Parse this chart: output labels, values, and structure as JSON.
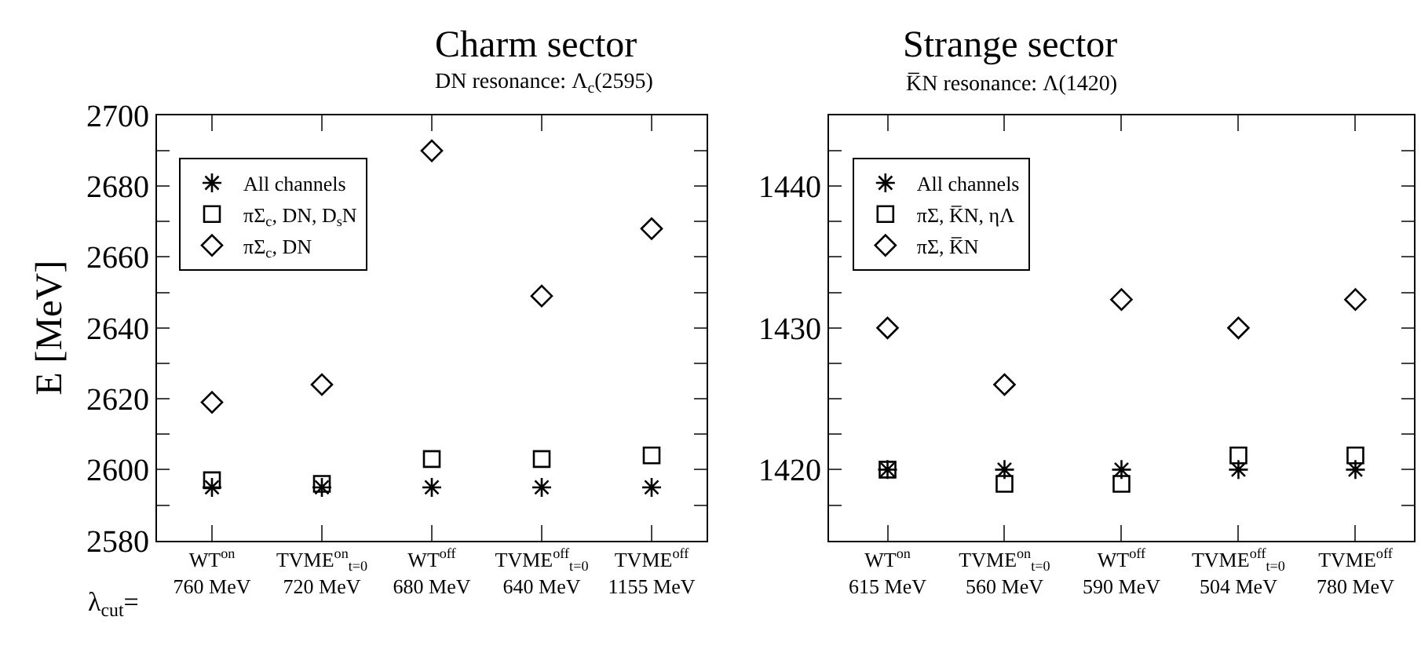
{
  "chart_data": [
    {
      "type": "scatter",
      "title": "Charm sector",
      "subtitle": "DN resonance: Λ$_{c}$(2595)",
      "ylabel": "E [MeV]",
      "categories": [
        "WT$^{on}$\n760 MeV",
        "TVME$^{on}$$_{t=0}$\n720 MeV",
        "WT$^{off}$\n680 MeV",
        "TVME$^{off}$$_{t=0}$\n640 MeV",
        "TVME$^{off}$\n1155 MeV"
      ],
      "series": [
        {
          "name": "All channels",
          "color": "#000000",
          "marker": "cross",
          "values": [
            2595,
            2595,
            2595,
            2595,
            2595
          ]
        },
        {
          "name": "πΣ$_{c}$, DN, D$_{s}$N",
          "color": "#000000",
          "marker": "square",
          "values": [
            2597,
            2596,
            2603,
            2603,
            2604
          ]
        },
        {
          "name": "πΣ$_{c}$, DN",
          "color": "#000000",
          "marker": "diamond",
          "values": [
            2619,
            2624,
            2690,
            2649,
            2668
          ]
        }
      ],
      "ylim": [
        2580,
        2700
      ],
      "yticks": [
        2580,
        {
          "value": 2590,
          "label": null
        },
        2600,
        {
          "value": 2610,
          "label": null
        },
        2620,
        {
          "value": 2630,
          "label": null
        },
        2640,
        {
          "value": 2650,
          "label": null
        },
        2660,
        {
          "value": 2670,
          "label": null
        },
        2680,
        {
          "value": 2690,
          "label": null
        },
        2700
      ],
      "annotations": [
        "λ$_{cut}$="
      ],
      "legend": "top left"
    },
    {
      "type": "scatter",
      "title": "Strange sector",
      "subtitle": "K̅N resonance: Λ(1420)",
      "categories": [
        "WT$^{on}$\n615 MeV",
        "TVME$^{on}$$_{t=0}$\n560 MeV",
        "WT$^{off}$\n590 MeV",
        "TVME$^{off}$$_{t=0}$\n504 MeV",
        "TVME$^{off}$\n780 MeV"
      ],
      "series": [
        {
          "name": "All channels",
          "color": "#000000",
          "marker": "cross",
          "values": [
            1420,
            1420,
            1420,
            1420,
            1420
          ]
        },
        {
          "name": "πΣ, K̅N, ηΛ",
          "color": "#000000",
          "marker": "square",
          "values": [
            1420,
            1419,
            1419,
            1421,
            1421
          ]
        },
        {
          "name": "πΣ, K̅N",
          "color": "#000000",
          "marker": "diamond",
          "values": [
            1430,
            1426,
            1432,
            1430,
            1432
          ]
        }
      ],
      "ylim": [
        1415,
        1445
      ],
      "yticks": [
        {
          "value": 1417.5,
          "label": null
        },
        1420,
        {
          "value": 1422.5,
          "label": null
        },
        {
          "value": 1425,
          "label": null
        },
        {
          "value": 1427.5,
          "label": null
        },
        1430,
        {
          "value": 1432.5,
          "label": null
        },
        {
          "value": 1435,
          "label": null
        },
        {
          "value": 1437.5,
          "label": null
        },
        1440,
        {
          "value": 1442.5,
          "label": null
        }
      ],
      "legend": "top left"
    }
  ]
}
